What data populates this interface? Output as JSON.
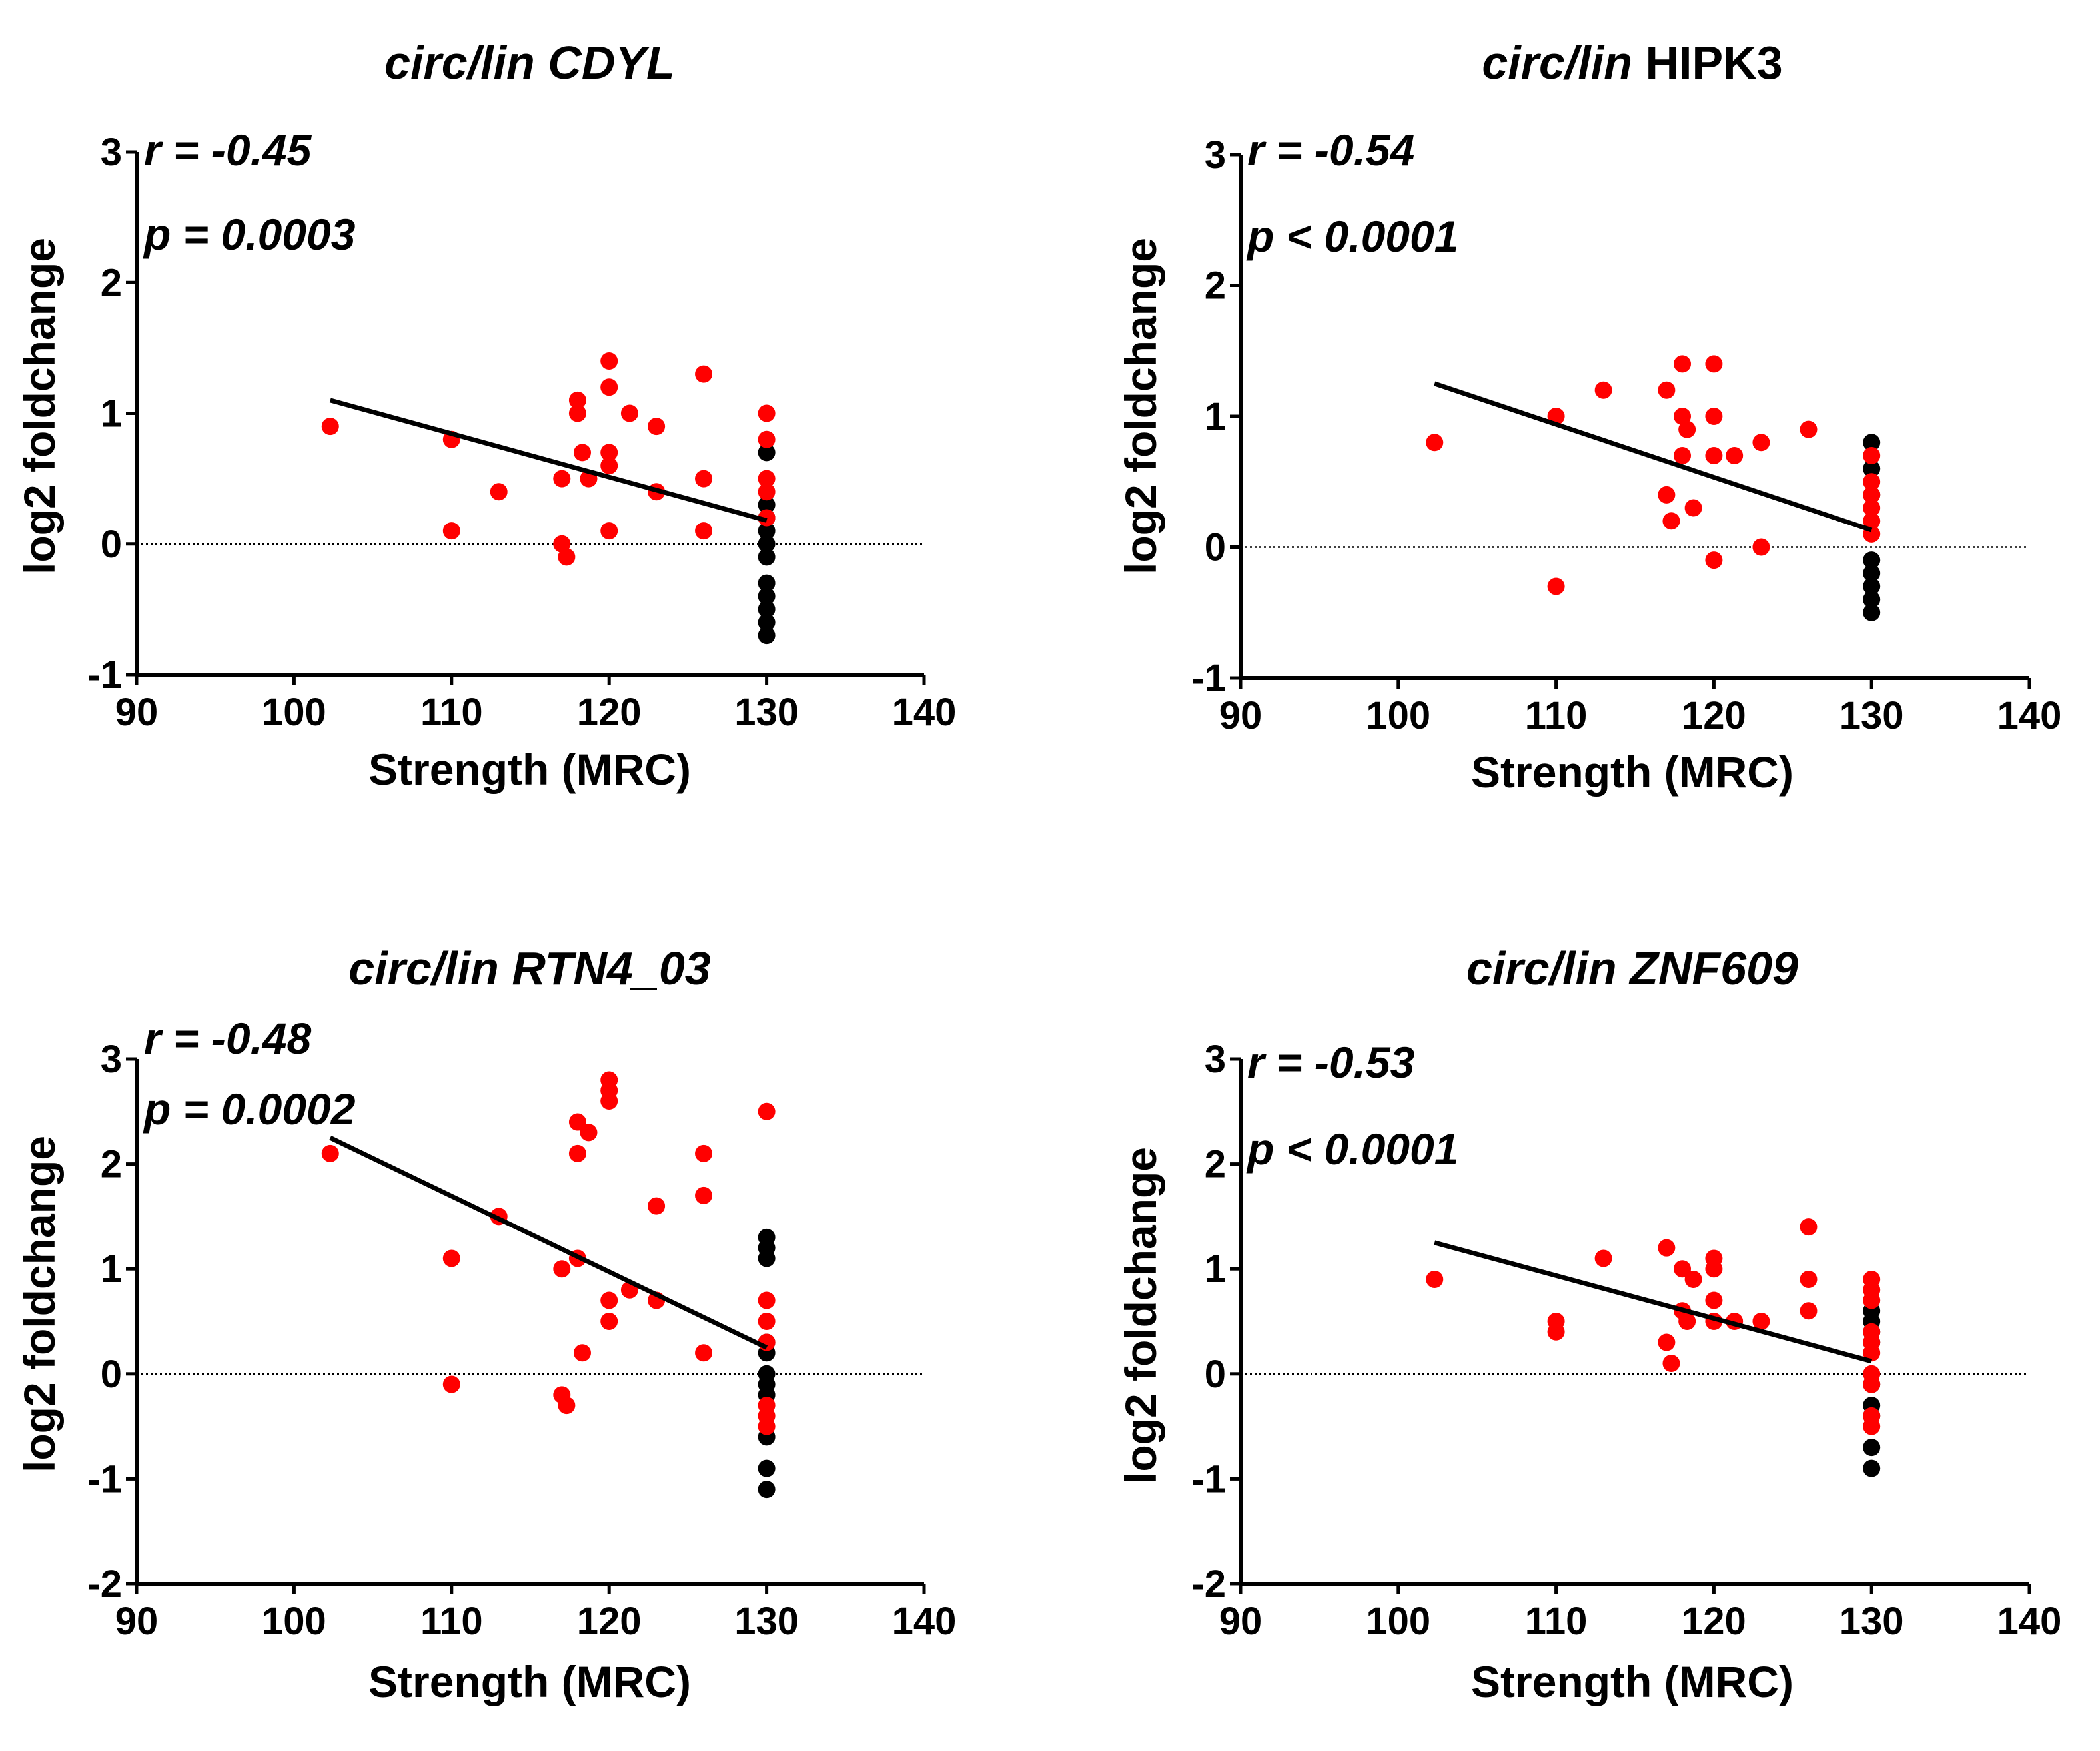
{
  "colors": {
    "red": "#ff0000",
    "black": "#000000",
    "axis": "#000000"
  },
  "chart_data": [
    {
      "type": "scatter",
      "title_italic": "circ/lin",
      "title_rest": "CDYL",
      "title_rest_italic": true,
      "r_label": "r = -0.45",
      "p_label": "p = 0.0003",
      "xlabel": "Strength (MRC)",
      "ylabel": "log2 foldchange",
      "xlim": [
        90,
        140
      ],
      "ylim": [
        -1,
        3
      ],
      "xticks": [
        "90",
        "100",
        "110",
        "120",
        "130",
        "140"
      ],
      "yticks": [
        "-1",
        "0",
        "1",
        "2",
        "3"
      ],
      "reference_line_y": 0,
      "regression": {
        "x": [
          102.3,
          130
        ],
        "y": [
          1.1,
          0.18
        ]
      },
      "series": [
        {
          "name": "red",
          "color": "#ff0000",
          "points": [
            [
              102.3,
              0.9
            ],
            [
              110,
              0.8
            ],
            [
              110,
              0.1
            ],
            [
              113,
              0.4
            ],
            [
              117,
              0.5
            ],
            [
              117,
              0
            ],
            [
              117.3,
              -0.1
            ],
            [
              118,
              1.1
            ],
            [
              118,
              1.0
            ],
            [
              118.3,
              0.7
            ],
            [
              118.7,
              0.5
            ],
            [
              120,
              1.4
            ],
            [
              120,
              1.2
            ],
            [
              120,
              0.7
            ],
            [
              120,
              0.6
            ],
            [
              120,
              0.1
            ],
            [
              121.3,
              1.0
            ],
            [
              123,
              0.9
            ],
            [
              123,
              0.4
            ],
            [
              126,
              1.3
            ],
            [
              126,
              0.5
            ],
            [
              126,
              0.1
            ],
            [
              130,
              1.0
            ],
            [
              130,
              0.8
            ],
            [
              130,
              0.5
            ],
            [
              130,
              0.4
            ],
            [
              130,
              0.2
            ]
          ]
        },
        {
          "name": "black",
          "color": "#000000",
          "points": [
            [
              130,
              0.7
            ],
            [
              130,
              0.3
            ],
            [
              130,
              0.2
            ],
            [
              130,
              0.1
            ],
            [
              130,
              0
            ],
            [
              130,
              -0.1
            ],
            [
              130,
              -0.3
            ],
            [
              130,
              -0.4
            ],
            [
              130,
              -0.5
            ],
            [
              130,
              -0.6
            ],
            [
              130,
              -0.7
            ]
          ]
        }
      ]
    },
    {
      "type": "scatter",
      "title_italic": "circ/lin",
      "title_rest": "HIPK3",
      "title_rest_italic": false,
      "r_label": "r = -0.54",
      "p_label": "p < 0.0001",
      "xlabel": "Strength (MRC)",
      "ylabel": "log2 foldchange",
      "xlim": [
        90,
        140
      ],
      "ylim": [
        -1,
        3
      ],
      "xticks": [
        "90",
        "100",
        "110",
        "120",
        "130",
        "140"
      ],
      "yticks": [
        "-1",
        "0",
        "1",
        "2",
        "3"
      ],
      "reference_line_y": 0,
      "regression": {
        "x": [
          102.3,
          130
        ],
        "y": [
          1.25,
          0.13
        ]
      },
      "series": [
        {
          "name": "red",
          "color": "#ff0000",
          "points": [
            [
              102.3,
              0.8
            ],
            [
              110,
              1.0
            ],
            [
              110,
              -0.3
            ],
            [
              113,
              1.2
            ],
            [
              117,
              1.2
            ],
            [
              117,
              0.4
            ],
            [
              117.3,
              0.2
            ],
            [
              118,
              1.4
            ],
            [
              118,
              1.0
            ],
            [
              118,
              0.7
            ],
            [
              118.3,
              0.9
            ],
            [
              118.7,
              0.3
            ],
            [
              120,
              1.4
            ],
            [
              120,
              1.0
            ],
            [
              120,
              0.7
            ],
            [
              120,
              -0.1
            ],
            [
              121.3,
              0.7
            ],
            [
              123,
              0.8
            ],
            [
              123,
              0
            ],
            [
              126,
              0.9
            ],
            [
              130,
              0.7
            ],
            [
              130,
              0.5
            ],
            [
              130,
              0.4
            ],
            [
              130,
              0.3
            ],
            [
              130,
              0.2
            ],
            [
              130,
              0.1
            ]
          ]
        },
        {
          "name": "black",
          "color": "#000000",
          "points": [
            [
              130,
              0.8
            ],
            [
              130,
              0.6
            ],
            [
              130,
              0.4
            ],
            [
              130,
              -0.1
            ],
            [
              130,
              -0.2
            ],
            [
              130,
              -0.3
            ],
            [
              130,
              -0.4
            ],
            [
              130,
              -0.5
            ]
          ]
        }
      ]
    },
    {
      "type": "scatter",
      "title_italic": "circ/lin",
      "title_rest": "RTN4_03",
      "title_rest_italic": true,
      "r_label": "r = -0.48",
      "p_label": "p = 0.0002",
      "xlabel": "Strength (MRC)",
      "ylabel": "log2 foldchange",
      "xlim": [
        90,
        140
      ],
      "ylim": [
        -2,
        3
      ],
      "xticks": [
        "90",
        "100",
        "110",
        "120",
        "130",
        "140"
      ],
      "yticks": [
        "-2",
        "-1",
        "0",
        "1",
        "2",
        "3"
      ],
      "reference_line_y": 0,
      "regression": {
        "x": [
          102.3,
          130
        ],
        "y": [
          2.25,
          0.25
        ]
      },
      "series": [
        {
          "name": "red",
          "color": "#ff0000",
          "points": [
            [
              102.3,
              2.1
            ],
            [
              110,
              1.1
            ],
            [
              110,
              -0.1
            ],
            [
              113,
              1.5
            ],
            [
              117,
              1.0
            ],
            [
              117,
              -0.2
            ],
            [
              117.3,
              -0.3
            ],
            [
              118,
              2.4
            ],
            [
              118,
              2.1
            ],
            [
              118,
              1.1
            ],
            [
              118.3,
              0.2
            ],
            [
              118.7,
              2.3
            ],
            [
              120,
              2.8
            ],
            [
              120,
              2.7
            ],
            [
              120,
              2.6
            ],
            [
              120,
              0.7
            ],
            [
              120,
              0.5
            ],
            [
              121.3,
              0.8
            ],
            [
              123,
              1.6
            ],
            [
              123,
              0.7
            ],
            [
              126,
              2.1
            ],
            [
              126,
              1.7
            ],
            [
              126,
              0.2
            ],
            [
              130,
              2.5
            ],
            [
              130,
              0.7
            ],
            [
              130,
              0.5
            ],
            [
              130,
              0.3
            ],
            [
              130,
              -0.3
            ],
            [
              130,
              -0.4
            ],
            [
              130,
              -0.5
            ]
          ]
        },
        {
          "name": "black",
          "color": "#000000",
          "points": [
            [
              130,
              1.3
            ],
            [
              130,
              1.2
            ],
            [
              130,
              1.1
            ],
            [
              130,
              0.3
            ],
            [
              130,
              0.2
            ],
            [
              130,
              0
            ],
            [
              130,
              -0.1
            ],
            [
              130,
              -0.2
            ],
            [
              130,
              -0.6
            ],
            [
              130,
              -0.9
            ],
            [
              130,
              -1.1
            ]
          ]
        }
      ]
    },
    {
      "type": "scatter",
      "title_italic": "circ/lin",
      "title_rest": "ZNF609",
      "title_rest_italic": true,
      "r_label": "r = -0.53",
      "p_label": "p < 0.0001",
      "xlabel": "Strength (MRC)",
      "ylabel": "log2 foldchange",
      "xlim": [
        90,
        140
      ],
      "ylim": [
        -2,
        3
      ],
      "xticks": [
        "90",
        "100",
        "110",
        "120",
        "130",
        "140"
      ],
      "yticks": [
        "-2",
        "-1",
        "0",
        "1",
        "2",
        "3"
      ],
      "reference_line_y": 0,
      "regression": {
        "x": [
          102.3,
          130
        ],
        "y": [
          1.25,
          0.12
        ]
      },
      "series": [
        {
          "name": "red",
          "color": "#ff0000",
          "points": [
            [
              102.3,
              0.9
            ],
            [
              110,
              0.5
            ],
            [
              110,
              0.4
            ],
            [
              113,
              1.1
            ],
            [
              117,
              1.2
            ],
            [
              117,
              0.3
            ],
            [
              117.3,
              0.1
            ],
            [
              118,
              1.0
            ],
            [
              118,
              0.6
            ],
            [
              118.3,
              0.5
            ],
            [
              118.7,
              0.9
            ],
            [
              120,
              1.1
            ],
            [
              120,
              1.0
            ],
            [
              120,
              0.7
            ],
            [
              120,
              0.5
            ],
            [
              121.3,
              0.5
            ],
            [
              123,
              0.5
            ],
            [
              126,
              1.4
            ],
            [
              126,
              0.9
            ],
            [
              126,
              0.6
            ],
            [
              130,
              0.9
            ],
            [
              130,
              0.8
            ],
            [
              130,
              0.7
            ],
            [
              130,
              0.4
            ],
            [
              130,
              0.3
            ],
            [
              130,
              0.2
            ],
            [
              130,
              0
            ],
            [
              130,
              -0.1
            ],
            [
              130,
              -0.4
            ],
            [
              130,
              -0.5
            ]
          ]
        },
        {
          "name": "black",
          "color": "#000000",
          "points": [
            [
              130,
              0.6
            ],
            [
              130,
              0.5
            ],
            [
              130,
              0.4
            ],
            [
              130,
              0.3
            ],
            [
              130,
              -0.1
            ],
            [
              130,
              -0.3
            ],
            [
              130,
              -0.4
            ],
            [
              130,
              -0.7
            ],
            [
              130,
              -0.9
            ]
          ]
        }
      ]
    }
  ]
}
